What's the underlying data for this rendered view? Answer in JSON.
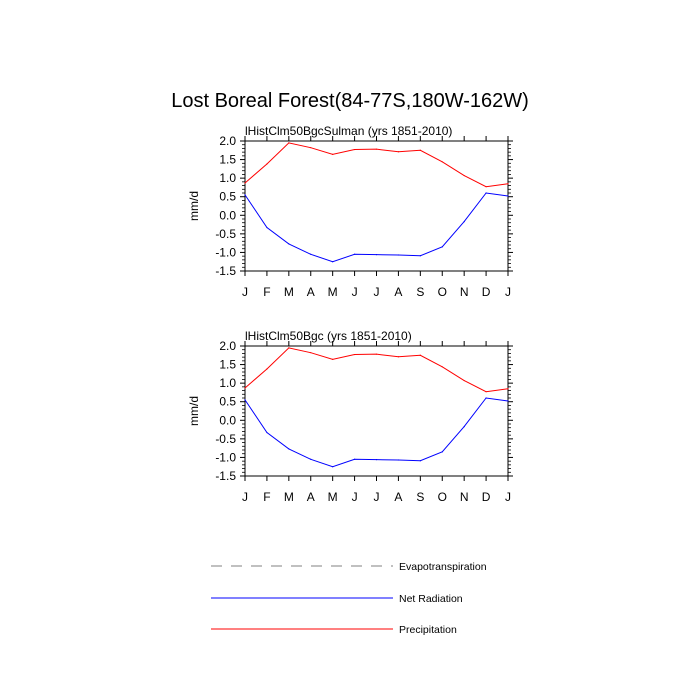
{
  "figure": {
    "title": "Lost Boreal Forest(84-77S,180W-162W)"
  },
  "chart_data": [
    {
      "type": "line",
      "title": "lHistClm50BgcSulman (yrs 1851-2010)",
      "xlabel": "",
      "ylabel": "mm/d",
      "categories": [
        "J",
        "F",
        "M",
        "A",
        "M",
        "J",
        "J",
        "A",
        "S",
        "O",
        "N",
        "D",
        "J"
      ],
      "ylim": [
        -1.5,
        2.0
      ],
      "yticks": [
        -1.5,
        -1.0,
        -0.5,
        0.0,
        0.5,
        1.0,
        1.5,
        2.0
      ],
      "ytick_labels": [
        "-1.5",
        "-1.0",
        "-0.5",
        "0.0",
        "0.5",
        "1.0",
        "1.5",
        "2.0"
      ],
      "grid": false,
      "series": [
        {
          "name": "Net Radiation",
          "color": "#0000ff",
          "values": [
            0.55,
            -0.33,
            -0.77,
            -1.05,
            -1.25,
            -1.05,
            -1.06,
            -1.07,
            -1.09,
            -0.85,
            -0.17,
            0.6,
            0.52
          ]
        },
        {
          "name": "Precipitation",
          "color": "#ff0000",
          "values": [
            0.87,
            1.38,
            1.95,
            1.82,
            1.64,
            1.77,
            1.78,
            1.71,
            1.75,
            1.44,
            1.07,
            0.77,
            0.85
          ]
        }
      ]
    },
    {
      "type": "line",
      "title": "lHistClm50Bgc (yrs 1851-2010)",
      "xlabel": "",
      "ylabel": "mm/d",
      "categories": [
        "J",
        "F",
        "M",
        "A",
        "M",
        "J",
        "J",
        "A",
        "S",
        "O",
        "N",
        "D",
        "J"
      ],
      "ylim": [
        -1.5,
        2.0
      ],
      "yticks": [
        -1.5,
        -1.0,
        -0.5,
        0.0,
        0.5,
        1.0,
        1.5,
        2.0
      ],
      "ytick_labels": [
        "-1.5",
        "-1.0",
        "-0.5",
        "0.0",
        "0.5",
        "1.0",
        "1.5",
        "2.0"
      ],
      "grid": false,
      "series": [
        {
          "name": "Net Radiation",
          "color": "#0000ff",
          "values": [
            0.55,
            -0.33,
            -0.77,
            -1.05,
            -1.25,
            -1.05,
            -1.06,
            -1.07,
            -1.09,
            -0.85,
            -0.17,
            0.6,
            0.52
          ]
        },
        {
          "name": "Precipitation",
          "color": "#ff0000",
          "values": [
            0.87,
            1.38,
            1.95,
            1.82,
            1.64,
            1.77,
            1.78,
            1.71,
            1.75,
            1.44,
            1.07,
            0.77,
            0.85
          ]
        }
      ]
    }
  ],
  "legend": {
    "placement": "bottom",
    "items": [
      {
        "label": "Evapotranspiration",
        "color": "#808080",
        "style": "dashed"
      },
      {
        "label": "Net Radiation",
        "color": "#0000ff",
        "style": "solid"
      },
      {
        "label": "Precipitation",
        "color": "#ff0000",
        "style": "solid"
      }
    ]
  }
}
